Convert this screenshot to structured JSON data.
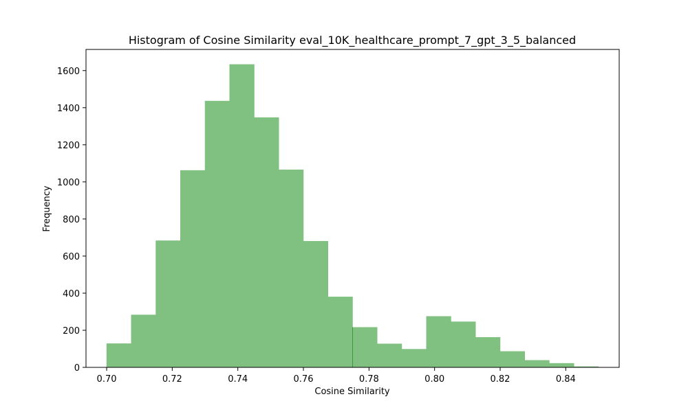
{
  "chart_data": {
    "type": "bar",
    "title": "Histogram of Cosine Similarity eval_10K_healthcare_prompt_7_gpt_3_5_balanced",
    "xlabel": "Cosine Similarity",
    "ylabel": "Frequency",
    "bar_color": "#80c080",
    "bar_edge_color": "#2e8b2e",
    "xlim": [
      0.6937,
      0.8563
    ],
    "ylim": [
      0,
      1714
    ],
    "xticks": [
      0.7,
      0.72,
      0.74,
      0.76,
      0.78,
      0.8,
      0.82,
      0.84
    ],
    "xtick_labels": [
      "0.70",
      "0.72",
      "0.74",
      "0.76",
      "0.78",
      "0.80",
      "0.82",
      "0.84"
    ],
    "yticks": [
      0,
      200,
      400,
      600,
      800,
      1000,
      1200,
      1400,
      1600
    ],
    "ytick_labels": [
      "0",
      "200",
      "400",
      "600",
      "800",
      "1000",
      "1200",
      "1400",
      "1600"
    ],
    "bins": [
      {
        "x0": 0.7,
        "x1": 0.7075,
        "value": 128
      },
      {
        "x0": 0.7075,
        "x1": 0.715,
        "value": 283
      },
      {
        "x0": 0.715,
        "x1": 0.7225,
        "value": 683
      },
      {
        "x0": 0.7225,
        "x1": 0.73,
        "value": 1062
      },
      {
        "x0": 0.73,
        "x1": 0.7375,
        "value": 1436
      },
      {
        "x0": 0.7375,
        "x1": 0.745,
        "value": 1633
      },
      {
        "x0": 0.745,
        "x1": 0.7525,
        "value": 1347
      },
      {
        "x0": 0.7525,
        "x1": 0.76,
        "value": 1065
      },
      {
        "x0": 0.76,
        "x1": 0.7675,
        "value": 680
      },
      {
        "x0": 0.7675,
        "x1": 0.775,
        "value": 380
      },
      {
        "x0": 0.775,
        "x1": 0.7825,
        "value": 216
      },
      {
        "x0": 0.7825,
        "x1": 0.79,
        "value": 127
      },
      {
        "x0": 0.79,
        "x1": 0.7975,
        "value": 98
      },
      {
        "x0": 0.7975,
        "x1": 0.805,
        "value": 275
      },
      {
        "x0": 0.805,
        "x1": 0.8125,
        "value": 246
      },
      {
        "x0": 0.8125,
        "x1": 0.82,
        "value": 162
      },
      {
        "x0": 0.82,
        "x1": 0.8275,
        "value": 86
      },
      {
        "x0": 0.8275,
        "x1": 0.835,
        "value": 38
      },
      {
        "x0": 0.835,
        "x1": 0.8425,
        "value": 22
      },
      {
        "x0": 0.8425,
        "x1": 0.85,
        "value": 4
      }
    ]
  }
}
